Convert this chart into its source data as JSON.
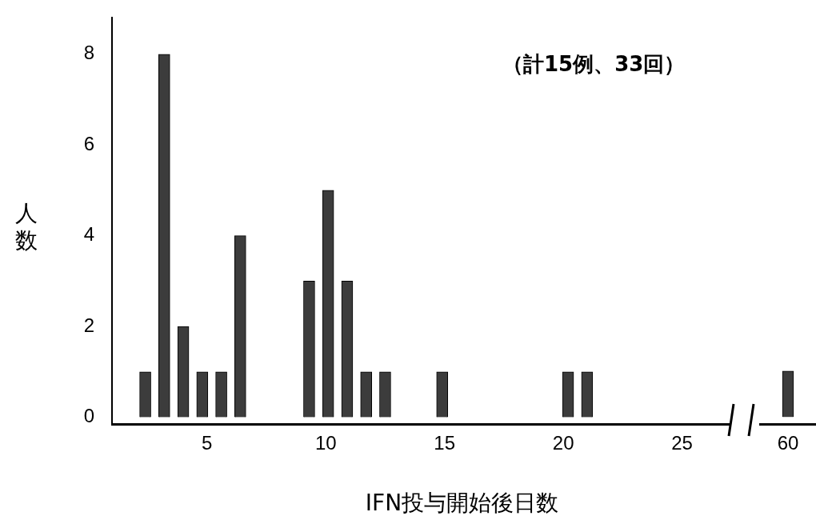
{
  "chart_data": [
    {
      "type": "bar",
      "xlabel": "IFN投与開始後日数",
      "ylabel": "人数",
      "annotations": [
        "（計15例、33回）"
      ],
      "x": [
        2.4,
        3.2,
        4.0,
        4.8,
        5.6,
        6.4,
        9.3,
        10.1,
        10.9,
        11.7,
        12.5,
        14.9,
        20.2,
        21.0
      ],
      "values": [
        1,
        8,
        2,
        1,
        1,
        4,
        3,
        5,
        3,
        1,
        1,
        1,
        1,
        1
      ],
      "color": "#3c3c3c",
      "xlim": [
        1,
        27
      ],
      "xticks": [
        5,
        10,
        15,
        20,
        25
      ],
      "ylim": [
        -0.15,
        8.8
      ],
      "yticks": [
        0,
        2,
        4,
        6,
        8
      ],
      "grid": false
    },
    {
      "type": "bar",
      "categories": [
        "60"
      ],
      "values": [
        1
      ],
      "color": "#3c3c3c",
      "yticks": [
        0,
        2,
        4,
        6,
        8
      ],
      "tick_labels": "x",
      "grid": false
    }
  ]
}
